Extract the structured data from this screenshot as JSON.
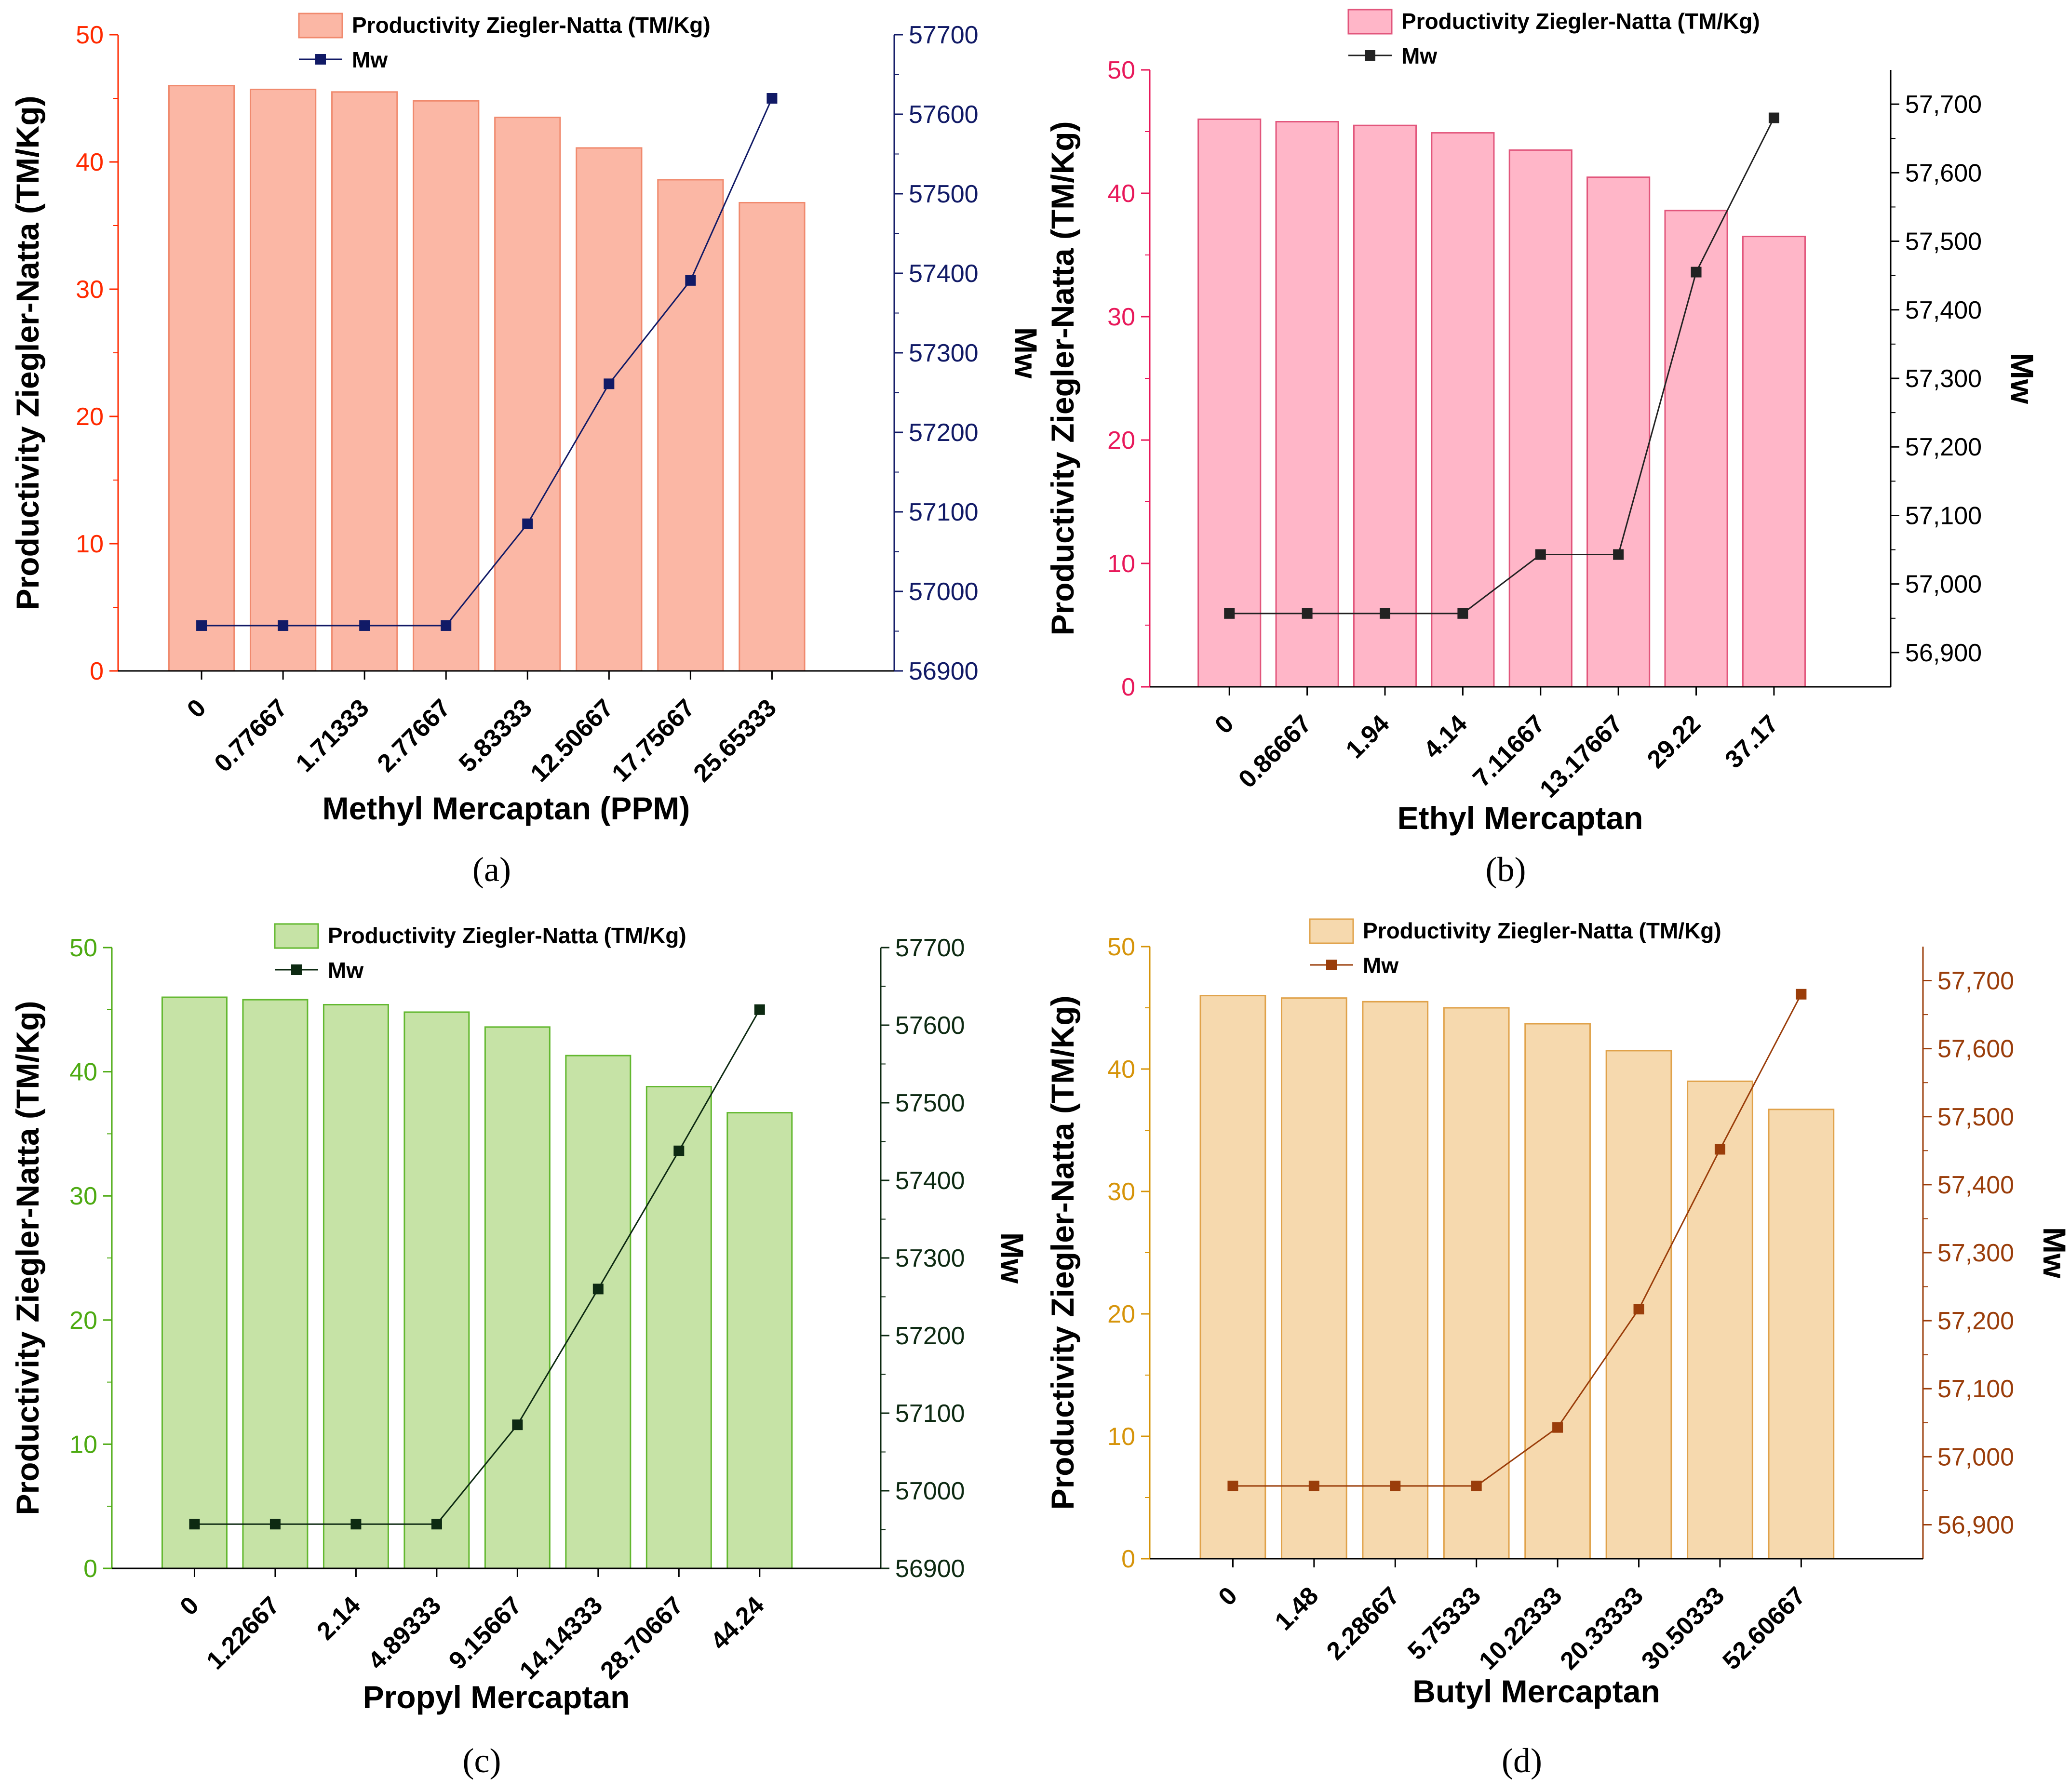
{
  "figure": {
    "panels": [
      {
        "label": "(a)",
        "legend_bar": "Productivity  Ziegler-Natta (TM/Kg)",
        "legend_line": "Mw",
        "colors": {
          "bar_fill": "#fbb7a5",
          "bar_stroke": "#f08a6e",
          "line": "#111a66",
          "left_axis": "#ff2a00",
          "right_axis": "#111a66"
        },
        "y_right_ticks": [
          "56900",
          "57000",
          "57100",
          "57200",
          "57300",
          "57400",
          "57500",
          "57600",
          "57700"
        ]
      },
      {
        "label": "(b)",
        "legend_bar": "Productivity  Ziegler-Natta (TM/Kg)",
        "legend_line": "Mw",
        "colors": {
          "bar_fill": "#ffb6c8",
          "bar_stroke": "#e2567c",
          "line": "#222222",
          "left_axis": "#e8185a",
          "right_axis": "#000000"
        },
        "y_right_ticks": [
          "56,900",
          "57,000",
          "57,100",
          "57,200",
          "57,300",
          "57,400",
          "57,500",
          "57,600",
          "57,700"
        ]
      },
      {
        "label": "(c)",
        "legend_bar": "Productivity  Ziegler-Natta (TM/Kg)",
        "legend_line": "Mw",
        "colors": {
          "bar_fill": "#c6e3a6",
          "bar_stroke": "#63b830",
          "line": "#0d2a12",
          "left_axis": "#4daa12",
          "right_axis": "#0d2a12"
        },
        "y_right_ticks": [
          "56900",
          "57000",
          "57100",
          "57200",
          "57300",
          "57400",
          "57500",
          "57600",
          "57700"
        ]
      },
      {
        "label": "(d)",
        "legend_bar": "Productivity  Ziegler-Natta (TM/Kg)",
        "legend_line": "Mw",
        "colors": {
          "bar_fill": "#f6d9ae",
          "bar_stroke": "#e0a24a",
          "line": "#9a3d0a",
          "left_axis": "#d6940a",
          "right_axis": "#9a3d0a"
        },
        "y_right_ticks": [
          "56,900",
          "57,000",
          "57,100",
          "57,200",
          "57,300",
          "57,400",
          "57,500",
          "57,600",
          "57,700"
        ]
      }
    ]
  },
  "chart_data": [
    {
      "type": "bar+line",
      "title": "",
      "xlabel": "Methyl Mercaptan (PPM)",
      "ylabel": "Productivity  Ziegler-Natta (TM/Kg)",
      "ylabel_right": "Mw",
      "categories": [
        "0",
        "0.77667",
        "1.71333",
        "2.77667",
        "5.83333",
        "12.50667",
        "17.75667",
        "25.65333"
      ],
      "series": [
        {
          "name": "Productivity  Ziegler-Natta (TM/Kg)",
          "axis": "left",
          "values": [
            46.0,
            45.7,
            45.5,
            44.8,
            43.5,
            41.1,
            38.6,
            36.8
          ]
        },
        {
          "name": "Mw",
          "axis": "right",
          "values": [
            56957,
            56957,
            56957,
            56957,
            57085,
            57261,
            57391,
            57620
          ]
        }
      ],
      "ylim": [
        0,
        50
      ],
      "ylim_right": [
        56900,
        57700
      ],
      "yticks": [
        "0",
        "10",
        "20",
        "30",
        "40",
        "50"
      ]
    },
    {
      "type": "bar+line",
      "title": "",
      "xlabel": "Ethyl Mercaptan",
      "ylabel": "Productivity  Ziegler-Natta (TM/Kg)",
      "ylabel_right": "Mw",
      "categories": [
        "0",
        "0.86667",
        "1.94",
        "4.14",
        "7.11667",
        "13.17667",
        "29.22",
        "37.17"
      ],
      "series": [
        {
          "name": "Productivity  Ziegler-Natta (TM/Kg)",
          "axis": "left",
          "values": [
            46.0,
            45.8,
            45.5,
            44.9,
            43.5,
            41.3,
            38.6,
            36.5
          ]
        },
        {
          "name": "Mw",
          "axis": "right",
          "values": [
            56957,
            56957,
            56957,
            56957,
            57043,
            57043,
            57455,
            57680
          ]
        }
      ],
      "ylim": [
        0,
        50
      ],
      "ylim_right": [
        56850,
        57750
      ],
      "yticks": [
        "0",
        "10",
        "20",
        "30",
        "40",
        "50"
      ]
    },
    {
      "type": "bar+line",
      "title": "",
      "xlabel": "Propyl Mercaptan",
      "ylabel": "Productivity  Ziegler-Natta (TM/Kg)",
      "ylabel_right": "Mw",
      "categories": [
        "0",
        "1.22667",
        "2.14",
        "4.89333",
        "9.15667",
        "14.14333",
        "28.70667",
        "44.24"
      ],
      "series": [
        {
          "name": "Productivity  Ziegler-Natta (TM/Kg)",
          "axis": "left",
          "values": [
            46.0,
            45.8,
            45.4,
            44.8,
            43.6,
            41.3,
            38.8,
            36.7
          ]
        },
        {
          "name": "Mw",
          "axis": "right",
          "values": [
            56957,
            56957,
            56957,
            56957,
            57085,
            57260,
            57438,
            57620
          ]
        }
      ],
      "ylim": [
        0,
        50
      ],
      "ylim_right": [
        56900,
        57700
      ],
      "yticks": [
        "0",
        "10",
        "20",
        "30",
        "40",
        "50"
      ]
    },
    {
      "type": "bar+line",
      "title": "",
      "xlabel": "Butyl Mercaptan",
      "ylabel": "Productivity  Ziegler-Natta (TM/Kg)",
      "ylabel_right": "Mw",
      "categories": [
        "0",
        "1.48",
        "2.28667",
        "5.75333",
        "10.22333",
        "20.33333",
        "30.50333",
        "52.60667"
      ],
      "series": [
        {
          "name": "Productivity  Ziegler-Natta (TM/Kg)",
          "axis": "left",
          "values": [
            46.0,
            45.8,
            45.5,
            45.0,
            43.7,
            41.5,
            39.0,
            36.7
          ]
        },
        {
          "name": "Mw",
          "axis": "right",
          "values": [
            56957,
            56957,
            56957,
            56957,
            57043,
            57217,
            57452,
            57680
          ]
        }
      ],
      "ylim": [
        0,
        50
      ],
      "ylim_right": [
        56850,
        57750
      ],
      "yticks": [
        "0",
        "10",
        "20",
        "30",
        "40",
        "50"
      ]
    }
  ]
}
